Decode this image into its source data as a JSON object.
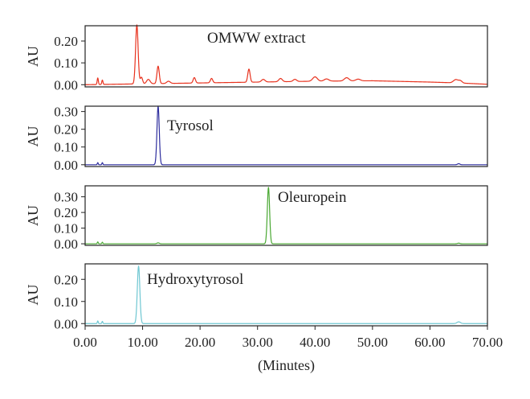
{
  "chart_data": {
    "type": "line",
    "xlabel": "(Minutes)",
    "xlim": [
      0,
      70
    ],
    "xticks": [
      0,
      10,
      20,
      30,
      40,
      50,
      60,
      70
    ],
    "xtick_labels": [
      "0.00",
      "10.00",
      "20.00",
      "30.00",
      "40.00",
      "50.00",
      "60.00",
      "70.00"
    ],
    "panels": [
      {
        "id": "omww",
        "label": "OMWW extract",
        "ylabel": "AU",
        "color": "#e8321e",
        "ylim": [
          -0.01,
          0.27
        ],
        "yticks": [
          0,
          0.1,
          0.2
        ],
        "ytick_labels": [
          "0.00",
          "0.10",
          "0.20"
        ],
        "baseline_points": [
          [
            0,
            0.0
          ],
          [
            10,
            0.004
          ],
          [
            20,
            0.008
          ],
          [
            30,
            0.012
          ],
          [
            40,
            0.016
          ],
          [
            50,
            0.018
          ],
          [
            60,
            0.012
          ],
          [
            65,
            0.008
          ],
          [
            70,
            0.002
          ]
        ],
        "peaks": [
          [
            2.2,
            0.03,
            0.1
          ],
          [
            3.0,
            0.02,
            0.1
          ],
          [
            9.0,
            0.27,
            0.22
          ],
          [
            9.8,
            0.03,
            0.2
          ],
          [
            11.0,
            0.02,
            0.3
          ],
          [
            12.7,
            0.08,
            0.2
          ],
          [
            14.5,
            0.01,
            0.3
          ],
          [
            19.0,
            0.025,
            0.2
          ],
          [
            22.0,
            0.02,
            0.2
          ],
          [
            28.5,
            0.06,
            0.2
          ],
          [
            31.0,
            0.012,
            0.3
          ],
          [
            34.0,
            0.015,
            0.3
          ],
          [
            36.5,
            0.01,
            0.3
          ],
          [
            40.0,
            0.02,
            0.4
          ],
          [
            42.0,
            0.01,
            0.4
          ],
          [
            45.5,
            0.015,
            0.4
          ],
          [
            47.5,
            0.008,
            0.4
          ],
          [
            64.5,
            0.015,
            0.4
          ],
          [
            65.3,
            0.01,
            0.3
          ]
        ]
      },
      {
        "id": "tyrosol",
        "label": "Tyrosol",
        "ylabel": "AU",
        "color": "#2e2e9e",
        "ylim": [
          -0.01,
          0.33
        ],
        "yticks": [
          0,
          0.1,
          0.2,
          0.3
        ],
        "ytick_labels": [
          "0.00",
          "0.10",
          "0.20",
          "0.30"
        ],
        "baseline_points": [
          [
            0,
            0.0
          ],
          [
            70,
            0.0
          ]
        ],
        "peaks": [
          [
            2.2,
            0.012,
            0.08
          ],
          [
            3.0,
            0.012,
            0.08
          ],
          [
            12.7,
            0.33,
            0.2
          ],
          [
            65.0,
            0.006,
            0.2
          ]
        ]
      },
      {
        "id": "oleuropein",
        "label": "Oleuropein",
        "ylabel": "AU",
        "color": "#49a832",
        "ylim": [
          -0.01,
          0.37
        ],
        "yticks": [
          0,
          0.1,
          0.2,
          0.3
        ],
        "ytick_labels": [
          "0.00",
          "0.10",
          "0.20",
          "0.30"
        ],
        "baseline_points": [
          [
            0,
            0.0
          ],
          [
            70,
            0.0
          ]
        ],
        "peaks": [
          [
            2.2,
            0.012,
            0.08
          ],
          [
            3.0,
            0.01,
            0.08
          ],
          [
            12.7,
            0.006,
            0.2
          ],
          [
            31.9,
            0.36,
            0.2
          ],
          [
            65.0,
            0.004,
            0.2
          ]
        ]
      },
      {
        "id": "hydroxytyrosol",
        "label": "Hydroxytyrosol",
        "ylabel": "AU",
        "color": "#6fc7d2",
        "ylim": [
          -0.01,
          0.27
        ],
        "yticks": [
          0,
          0.1,
          0.2
        ],
        "ytick_labels": [
          "0.00",
          "0.10",
          "0.20"
        ],
        "baseline_points": [
          [
            0,
            0.0
          ],
          [
            70,
            0.0
          ]
        ],
        "peaks": [
          [
            2.2,
            0.012,
            0.08
          ],
          [
            3.0,
            0.01,
            0.08
          ],
          [
            9.3,
            0.26,
            0.22
          ],
          [
            65.0,
            0.008,
            0.3
          ]
        ]
      }
    ]
  }
}
